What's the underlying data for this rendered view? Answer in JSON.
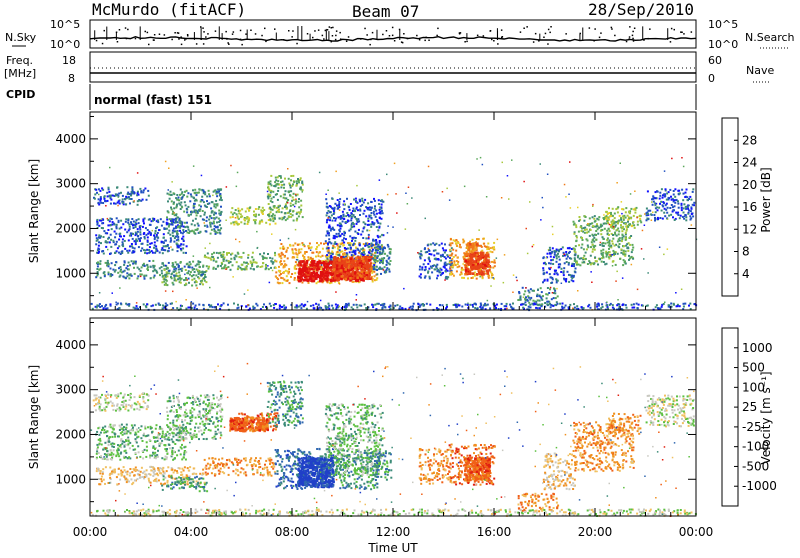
{
  "header": {
    "station": "McMurdo (fitACF)",
    "beam": "Beam 07",
    "date": "28/Sep/2010"
  },
  "top_panels": {
    "nsky_label": "N.Sky",
    "nsearch_label": "N.Search",
    "nsky_ticks": [
      "10^5",
      "10^0"
    ],
    "nsearch_ticks": [
      "10^5",
      "10^0"
    ],
    "freq_label": "Freq.",
    "freq_unit": "[MHz]",
    "freq_ticks": [
      "18",
      "8"
    ],
    "nave_label": "Nave",
    "nave_ticks": [
      "60",
      "0"
    ],
    "cpid_label": "CPID",
    "cpid_value": "normal (fast) 151"
  },
  "chart_data": [
    {
      "type": "heatmap",
      "panel": "power",
      "ylabel": "Slant Range [km]",
      "yticks": [
        "1000",
        "2000",
        "3000",
        "4000"
      ],
      "ytick_values": [
        1000,
        2000,
        3000,
        4000
      ],
      "ylim": [
        180,
        4600
      ],
      "xlim": [
        0,
        24
      ],
      "colorbar_label": "Power [dB]",
      "colorbar_ticks": [
        "4",
        "8",
        "12",
        "16",
        "20",
        "24",
        "28"
      ],
      "colorbar_colors": [
        "#1010ff",
        "#2050c0",
        "#3c8a78",
        "#5aa85a",
        "#a8c83c",
        "#e8d02a",
        "#f0a020",
        "#f07818",
        "#e84418",
        "#e01010"
      ],
      "scatter_regions": [
        {
          "t0": 0.1,
          "t1": 2.3,
          "r0": 2550,
          "r1": 2950,
          "level": 1
        },
        {
          "t0": 0.2,
          "t1": 3.8,
          "r0": 1450,
          "r1": 2250,
          "level": 1
        },
        {
          "t0": 0.2,
          "t1": 4.5,
          "r0": 900,
          "r1": 1300,
          "level": 2
        },
        {
          "t0": 2.8,
          "t1": 4.6,
          "r0": 750,
          "r1": 1100,
          "level": 3
        },
        {
          "t0": 3.0,
          "t1": 5.2,
          "r0": 1900,
          "r1": 2900,
          "level": 2
        },
        {
          "t0": 4.5,
          "t1": 7.3,
          "r0": 1100,
          "r1": 1500,
          "level": 3
        },
        {
          "t0": 5.5,
          "t1": 7.4,
          "r0": 2100,
          "r1": 2500,
          "level": 4
        },
        {
          "t0": 7.0,
          "t1": 8.4,
          "r0": 2200,
          "r1": 3200,
          "level": 3
        },
        {
          "t0": 7.3,
          "t1": 11.4,
          "r0": 800,
          "r1": 1700,
          "level": 6
        },
        {
          "t0": 9.3,
          "t1": 11.6,
          "r0": 1100,
          "r1": 2700,
          "level": 1
        },
        {
          "t0": 11.1,
          "t1": 11.9,
          "r0": 1000,
          "r1": 1700,
          "level": 2
        },
        {
          "t0": 13.0,
          "t1": 14.3,
          "r0": 900,
          "r1": 1700,
          "level": 1
        },
        {
          "t0": 14.2,
          "t1": 16.0,
          "r0": 900,
          "r1": 1800,
          "level": 6
        },
        {
          "t0": 17.9,
          "t1": 19.2,
          "r0": 800,
          "r1": 1600,
          "level": 1
        },
        {
          "t0": 16.9,
          "t1": 18.5,
          "r0": 300,
          "r1": 700,
          "level": 2
        },
        {
          "t0": 19.1,
          "t1": 21.5,
          "r0": 1200,
          "r1": 2300,
          "level": 3
        },
        {
          "t0": 20.4,
          "t1": 21.8,
          "r0": 2000,
          "r1": 2500,
          "level": 4
        },
        {
          "t0": 22.0,
          "t1": 23.9,
          "r0": 2200,
          "r1": 2900,
          "level": 1
        },
        {
          "t0": 0.0,
          "t1": 24.0,
          "r0": 200,
          "r1": 350,
          "level": 1
        }
      ],
      "core_regions": [
        {
          "t0": 8.2,
          "t1": 10.8,
          "r0": 850,
          "r1": 1300,
          "level": 9
        },
        {
          "t0": 9.6,
          "t1": 11.1,
          "r0": 900,
          "r1": 1400,
          "level": 8
        },
        {
          "t0": 14.8,
          "t1": 15.8,
          "r0": 1000,
          "r1": 1500,
          "level": 8
        },
        {
          "t0": 14.9,
          "t1": 15.3,
          "r0": 1500,
          "r1": 1700,
          "level": 7
        }
      ]
    },
    {
      "type": "heatmap",
      "panel": "velocity",
      "ylabel": "Slant Range [km]",
      "yticks": [
        "1000",
        "2000",
        "3000",
        "4000"
      ],
      "ytick_values": [
        1000,
        2000,
        3000,
        4000
      ],
      "ylim": [
        180,
        4600
      ],
      "xlim": [
        0,
        24
      ],
      "xlabel": "Time UT",
      "xticks": [
        "00:00",
        "04:00",
        "08:00",
        "12:00",
        "16:00",
        "20:00",
        "00:00"
      ],
      "xtick_values": [
        0,
        4,
        8,
        12,
        16,
        20,
        24
      ],
      "colorbar_label": "Velocity [m s⁻¹]",
      "colorbar_ticks": [
        "1000",
        "500",
        "100",
        "25",
        "-25",
        "-100",
        "-500",
        "-1000"
      ],
      "colorbar_colors": [
        "#2040c8",
        "#3068b0",
        "#3c8c78",
        "#5cc040",
        "#c8c8c0",
        "#f0c060",
        "#f09020",
        "#f06018",
        "#e02010"
      ],
      "scatter_regions": [
        {
          "t0": 0.1,
          "t1": 2.3,
          "r0": 2550,
          "r1": 2950,
          "level": 4
        },
        {
          "t0": 0.2,
          "t1": 3.8,
          "r0": 1450,
          "r1": 2250,
          "level": 3
        },
        {
          "t0": 0.2,
          "t1": 4.5,
          "r0": 900,
          "r1": 1300,
          "level": 5
        },
        {
          "t0": 2.8,
          "t1": 4.6,
          "r0": 750,
          "r1": 1100,
          "level": 2
        },
        {
          "t0": 3.0,
          "t1": 5.2,
          "r0": 1900,
          "r1": 2900,
          "level": 3
        },
        {
          "t0": 4.5,
          "t1": 7.3,
          "r0": 1100,
          "r1": 1500,
          "level": 6
        },
        {
          "t0": 5.5,
          "t1": 7.4,
          "r0": 2100,
          "r1": 2500,
          "level": 7
        },
        {
          "t0": 7.0,
          "t1": 8.4,
          "r0": 2200,
          "r1": 3200,
          "level": 2
        },
        {
          "t0": 7.3,
          "t1": 9.6,
          "r0": 800,
          "r1": 1700,
          "level": 1
        },
        {
          "t0": 9.6,
          "t1": 11.4,
          "r0": 800,
          "r1": 1700,
          "level": 2
        },
        {
          "t0": 9.3,
          "t1": 11.6,
          "r0": 1100,
          "r1": 2700,
          "level": 3
        },
        {
          "t0": 11.1,
          "t1": 11.9,
          "r0": 1000,
          "r1": 1700,
          "level": 2
        },
        {
          "t0": 13.0,
          "t1": 14.3,
          "r0": 900,
          "r1": 1700,
          "level": 6
        },
        {
          "t0": 14.2,
          "t1": 16.0,
          "r0": 900,
          "r1": 1800,
          "level": 7
        },
        {
          "t0": 17.9,
          "t1": 19.2,
          "r0": 800,
          "r1": 1600,
          "level": 5
        },
        {
          "t0": 16.9,
          "t1": 18.5,
          "r0": 300,
          "r1": 700,
          "level": 6
        },
        {
          "t0": 19.1,
          "t1": 21.5,
          "r0": 1200,
          "r1": 2300,
          "level": 6
        },
        {
          "t0": 20.4,
          "t1": 21.8,
          "r0": 2000,
          "r1": 2500,
          "level": 6
        },
        {
          "t0": 22.0,
          "t1": 23.9,
          "r0": 2200,
          "r1": 2900,
          "level": 4
        },
        {
          "t0": 0.0,
          "t1": 24.0,
          "r0": 200,
          "r1": 350,
          "level": 4
        }
      ],
      "core_regions": [
        {
          "t0": 8.2,
          "t1": 9.6,
          "r0": 850,
          "r1": 1500,
          "level": 0
        },
        {
          "t0": 14.8,
          "t1": 15.8,
          "r0": 1000,
          "r1": 1500,
          "level": 7
        },
        {
          "t0": 5.5,
          "t1": 7.0,
          "r0": 2100,
          "r1": 2400,
          "level": 7
        }
      ]
    }
  ]
}
